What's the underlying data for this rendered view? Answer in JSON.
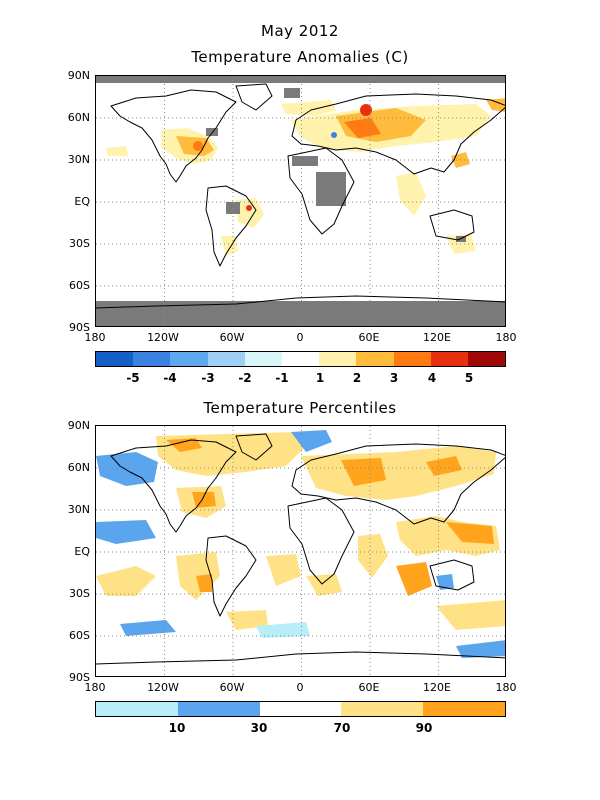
{
  "header": {
    "date": "May 2012"
  },
  "anomaly_map": {
    "title": "Temperature Anomalies (C)",
    "lat_labels": [
      "90N",
      "60N",
      "30N",
      "EQ",
      "30S",
      "60S",
      "90S"
    ],
    "lon_labels": [
      "180",
      "120W",
      "60W",
      "0",
      "60E",
      "120E",
      "180"
    ],
    "colorbar": {
      "labels": [
        "-5",
        "-4",
        "-3",
        "-2",
        "-1",
        "1",
        "2",
        "3",
        "4",
        "5"
      ],
      "colors": [
        "#1560c8",
        "#3b82e0",
        "#5fa8f0",
        "#9ecff5",
        "#d9f6fb",
        "#ffffff",
        "#fff2ad",
        "#ffbb3c",
        "#ff7a10",
        "#e83010",
        "#a00808"
      ]
    }
  },
  "percentile_map": {
    "title": "Temperature Percentiles",
    "lat_labels": [
      "90N",
      "60N",
      "30N",
      "EQ",
      "30S",
      "60S",
      "90S"
    ],
    "lon_labels": [
      "180",
      "120W",
      "60W",
      "0",
      "60E",
      "120E",
      "180"
    ],
    "colorbar": {
      "labels": [
        "10",
        "30",
        "70",
        "90"
      ],
      "colors": [
        "#b8eef7",
        "#5ba4ee",
        "#ffffff",
        "#ffe285",
        "#ffa41c"
      ]
    }
  },
  "colors": {
    "missing": "#7a7a7a",
    "coast": "#000000",
    "grid": "#888888"
  }
}
